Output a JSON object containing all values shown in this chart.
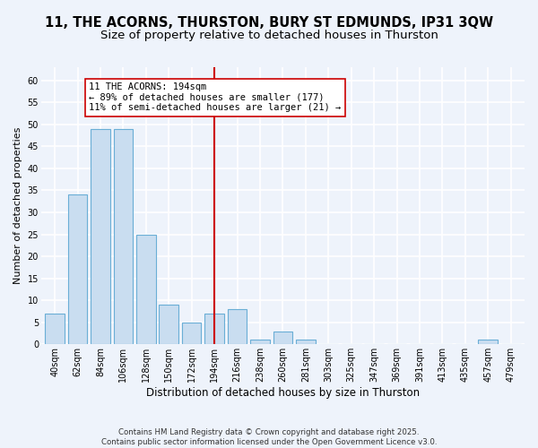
{
  "title": "11, THE ACORNS, THURSTON, BURY ST EDMUNDS, IP31 3QW",
  "subtitle": "Size of property relative to detached houses in Thurston",
  "xlabel": "Distribution of detached houses by size in Thurston",
  "ylabel": "Number of detached properties",
  "bar_labels": [
    "40sqm",
    "62sqm",
    "84sqm",
    "106sqm",
    "128sqm",
    "150sqm",
    "172sqm",
    "194sqm",
    "216sqm",
    "238sqm",
    "260sqm",
    "281sqm",
    "303sqm",
    "325sqm",
    "347sqm",
    "369sqm",
    "391sqm",
    "413sqm",
    "435sqm",
    "457sqm",
    "479sqm"
  ],
  "bar_values": [
    7,
    34,
    49,
    49,
    25,
    9,
    5,
    7,
    8,
    1,
    3,
    1,
    0,
    0,
    0,
    0,
    0,
    0,
    0,
    1,
    0
  ],
  "bar_color": "#c9ddf0",
  "bar_edge_color": "#6aaed6",
  "highlight_index": 7,
  "highlight_line_color": "#cc0000",
  "annotation_line1": "11 THE ACORNS: 194sqm",
  "annotation_line2": "← 89% of detached houses are smaller (177)",
  "annotation_line3": "11% of semi-detached houses are larger (21) →",
  "annotation_box_color": "#ffffff",
  "annotation_box_edge_color": "#cc0000",
  "ylim": [
    0,
    63
  ],
  "yticks": [
    0,
    5,
    10,
    15,
    20,
    25,
    30,
    35,
    40,
    45,
    50,
    55,
    60
  ],
  "footer_text": "Contains HM Land Registry data © Crown copyright and database right 2025.\nContains public sector information licensed under the Open Government Licence v3.0.",
  "bg_color": "#eef3fb",
  "grid_color": "#ffffff",
  "title_fontsize": 10.5,
  "subtitle_fontsize": 9.5,
  "annotation_fontsize": 7.5,
  "tick_fontsize": 7,
  "ylabel_fontsize": 8,
  "xlabel_fontsize": 8.5
}
